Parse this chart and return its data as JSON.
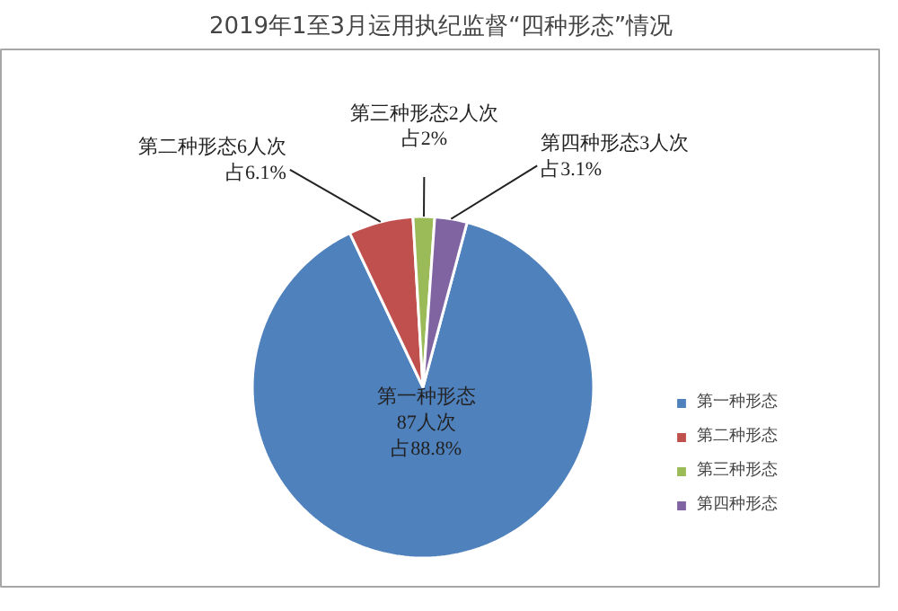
{
  "chart_data": {
    "type": "pie",
    "title": "2019年1至3月运用执纪监督“四种形态”情况",
    "categories": [
      "第一种形态",
      "第二种形态",
      "第三种形态",
      "第四种形态"
    ],
    "values": [
      87,
      6,
      2,
      3
    ],
    "colors": [
      "#4f81bd",
      "#c0504d",
      "#9bbb59",
      "#8064a2"
    ],
    "value_labels": [
      "第一种形态87人次占88.8%",
      "第二种形态6人次占6.1%",
      "第三种形态2人次占2%",
      "第四种形态3人次占3.1%"
    ],
    "legend": "right"
  }
}
